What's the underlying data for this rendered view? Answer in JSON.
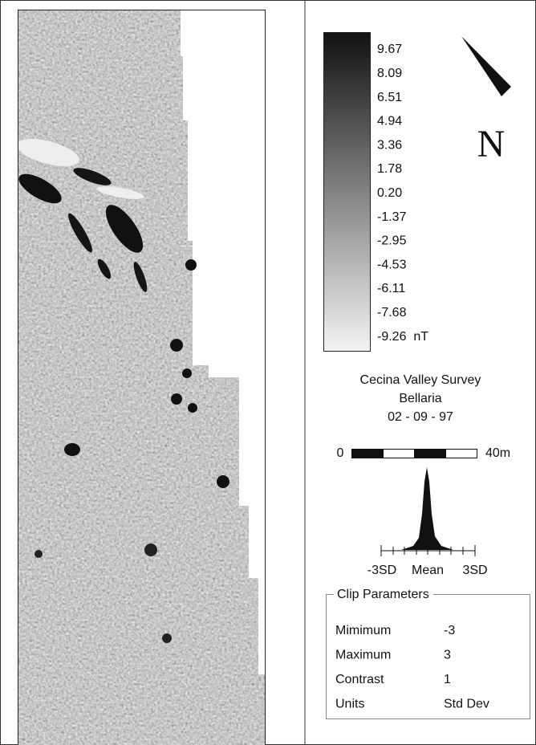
{
  "legend": {
    "labels": [
      "9.67",
      "8.09",
      "6.51",
      "4.94",
      "3.36",
      "1.78",
      "0.20",
      "-1.37",
      "-2.95",
      "-4.53",
      "-6.11",
      "-7.68",
      "-9.26  nT"
    ]
  },
  "north": "N",
  "title": {
    "lines": [
      "Cecina Valley Survey",
      "Bellaria",
      "02 - 09 - 97"
    ]
  },
  "scale_bar": {
    "start": "0",
    "end": "40m"
  },
  "histogram": {
    "labels": [
      "-3SD",
      "Mean",
      "3SD"
    ]
  },
  "clip_parameters": {
    "title": "Clip Parameters",
    "rows": [
      [
        "Mimimum",
        "-3"
      ],
      [
        "Maximum",
        "3"
      ],
      [
        "Contrast",
        "1"
      ],
      [
        "Units",
        "Std Dev"
      ]
    ]
  }
}
